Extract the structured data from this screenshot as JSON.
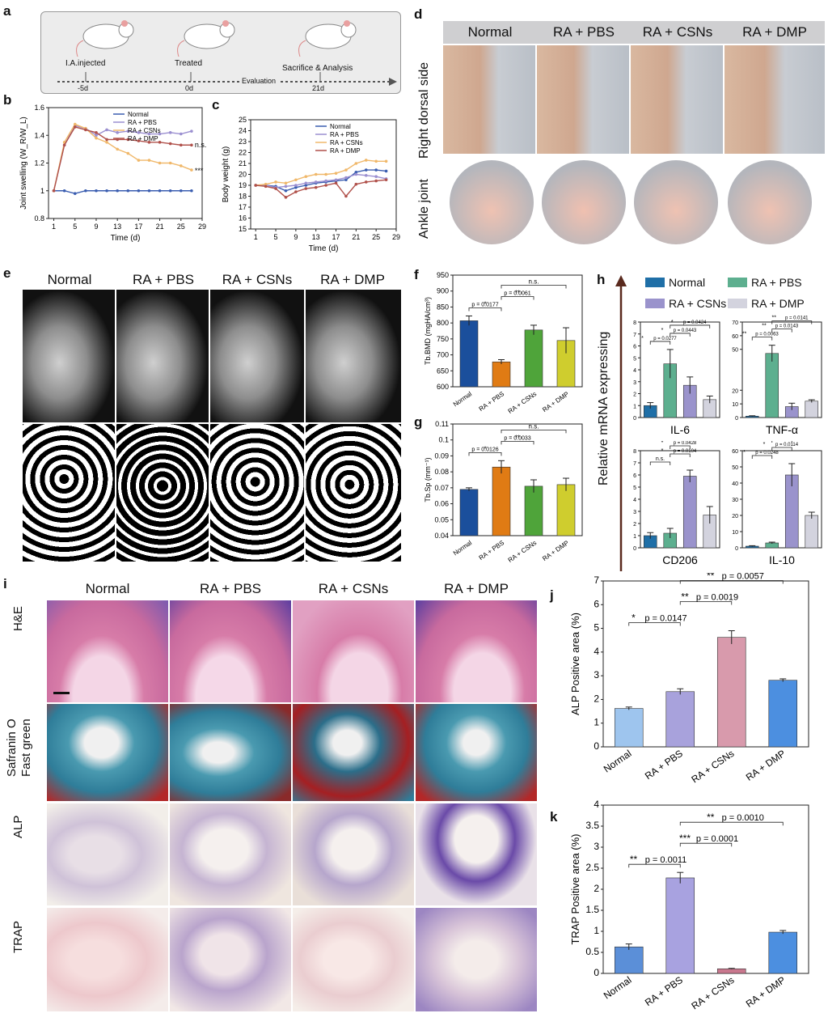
{
  "panels": {
    "a": {
      "label": "a",
      "steps": [
        "I.A.injected",
        "Treated",
        "Sacrifice & Analysis"
      ],
      "days": [
        "-5d",
        "0d",
        "21d"
      ],
      "timeline_label": "Evaluation"
    },
    "b": {
      "label": "b"
    },
    "c": {
      "label": "c"
    },
    "d": {
      "label": "d",
      "columns": [
        "Normal",
        "RA + PBS",
        "RA + CSNs",
        "RA + DMP"
      ],
      "rows": [
        "Right dorsal side",
        "Ankle joint"
      ]
    },
    "e": {
      "label": "e",
      "columns": [
        "Normal",
        "RA + PBS",
        "RA + CSNs",
        "RA + DMP"
      ]
    },
    "f": {
      "label": "f"
    },
    "g": {
      "label": "g"
    },
    "h": {
      "label": "h",
      "ylabel": "Relative mRNA expressing",
      "legend": [
        "Normal",
        "RA + PBS",
        "RA + CSNs",
        "RA + DMP"
      ]
    },
    "i": {
      "label": "i",
      "columns": [
        "Normal",
        "RA + PBS",
        "RA + CSNs",
        "RA + DMP"
      ],
      "rows": [
        "H&E",
        "Safranin O Fast green",
        "ALP",
        "TRAP"
      ],
      "row_lines": [
        [
          "H&E"
        ],
        [
          "Safranin O",
          "Fast green"
        ],
        [
          "ALP"
        ],
        [
          "TRAP"
        ]
      ]
    },
    "j": {
      "label": "j"
    },
    "k": {
      "label": "k"
    }
  },
  "colors": {
    "normal": "#1b4f9c",
    "pbs": "#e07b14",
    "csns": "#4fa43a",
    "dmp": "#cfcd2e",
    "h_normal": "#1f6fa7",
    "h_pbs": "#5daf8f",
    "h_csns": "#9a93cc",
    "h_dmp": "#d3d3de",
    "j_normal": "#9ec5ee",
    "j_pbs": "#a8a2dc",
    "j_csns": "#d89aac",
    "j_dmp": "#4c8fe0",
    "k_normal": "#5b8fd8",
    "k_pbs": "#a8a2e0",
    "k_csns": "#c9788e",
    "k_dmp": "#4c8fe0"
  },
  "chart_data": [
    {
      "id": "b",
      "type": "line",
      "xlabel": "Time (d)",
      "ylabel": "Joint swelling (W_R/W_L)",
      "ylim": [
        0.8,
        1.6
      ],
      "xlim": [
        0,
        29
      ],
      "xticks": [
        1,
        5,
        9,
        13,
        17,
        21,
        25,
        29
      ],
      "yticks": [
        0.8,
        1.0,
        1.2,
        1.4,
        1.6
      ],
      "x": [
        1,
        3,
        5,
        7,
        9,
        11,
        13,
        15,
        17,
        19,
        21,
        23,
        25,
        27
      ],
      "series": [
        {
          "name": "Normal",
          "color": "#3a5db0",
          "values": [
            1.0,
            1.0,
            0.98,
            1.0,
            1.0,
            1.0,
            1.0,
            1.0,
            1.0,
            1.0,
            1.0,
            1.0,
            1.0,
            1.0
          ]
        },
        {
          "name": "RA + PBS",
          "color": "#9b8fd0",
          "values": [
            1.0,
            1.33,
            1.47,
            1.45,
            1.4,
            1.44,
            1.42,
            1.43,
            1.42,
            1.41,
            1.41,
            1.42,
            1.41,
            1.43
          ]
        },
        {
          "name": "RA + CSNs",
          "color": "#f0b86a",
          "values": [
            1.0,
            1.35,
            1.48,
            1.45,
            1.38,
            1.35,
            1.3,
            1.27,
            1.22,
            1.22,
            1.2,
            1.2,
            1.18,
            1.15
          ]
        },
        {
          "name": "RA + DMP",
          "color": "#b0504a",
          "values": [
            1.0,
            1.33,
            1.46,
            1.44,
            1.42,
            1.37,
            1.37,
            1.37,
            1.36,
            1.35,
            1.35,
            1.34,
            1.33,
            1.33
          ]
        }
      ],
      "annotations": [
        "n.s.",
        "***"
      ]
    },
    {
      "id": "c",
      "type": "line",
      "xlabel": "Time (d)",
      "ylabel": "Body weight (g)",
      "ylim": [
        15,
        25
      ],
      "xticks": [
        1,
        5,
        9,
        13,
        17,
        21,
        25,
        29
      ],
      "yticks": [
        15,
        16,
        17,
        18,
        19,
        20,
        21,
        22,
        23,
        24,
        25
      ],
      "x": [
        1,
        3,
        5,
        7,
        9,
        11,
        13,
        15,
        17,
        19,
        21,
        23,
        25,
        27
      ],
      "series": [
        {
          "name": "Normal",
          "color": "#3a5db0",
          "values": [
            19.0,
            19.0,
            18.9,
            18.5,
            18.8,
            19.0,
            19.2,
            19.3,
            19.4,
            19.5,
            20.2,
            20.4,
            20.4,
            20.3
          ]
        },
        {
          "name": "RA + PBS",
          "color": "#9b8fd0",
          "values": [
            19.0,
            19.0,
            18.8,
            18.9,
            19.0,
            19.2,
            19.3,
            19.4,
            19.5,
            19.7,
            20.0,
            19.9,
            19.8,
            19.6
          ]
        },
        {
          "name": "RA + CSNs",
          "color": "#f0b86a",
          "values": [
            19.0,
            19.1,
            19.3,
            19.2,
            19.5,
            19.8,
            20.0,
            20.0,
            20.1,
            20.4,
            21.0,
            21.3,
            21.2,
            21.2
          ]
        },
        {
          "name": "RA + DMP",
          "color": "#b0504a",
          "values": [
            19.0,
            18.9,
            18.7,
            17.9,
            18.4,
            18.7,
            18.8,
            19.0,
            19.2,
            18.0,
            19.1,
            19.3,
            19.4,
            19.5
          ]
        }
      ]
    },
    {
      "id": "f",
      "type": "bar",
      "ylabel": "Tb.BMD (mgHA/cm³)",
      "ylim": [
        600,
        950
      ],
      "yticks": [
        600,
        650,
        700,
        750,
        800,
        850,
        900,
        950
      ],
      "categories": [
        "Normal",
        "RA + PBS",
        "RA + CSNs",
        "RA + DMP"
      ],
      "values": [
        807,
        678,
        778,
        745
      ],
      "errors": [
        15,
        7,
        15,
        40
      ],
      "comparisons": [
        {
          "from": 0,
          "to": 1,
          "text": "p = 0.0177",
          "stars": "*"
        },
        {
          "from": 1,
          "to": 2,
          "text": "p = 0.0061",
          "stars": "**"
        },
        {
          "from": 1,
          "to": 3,
          "text": "",
          "stars": "n.s."
        }
      ]
    },
    {
      "id": "g",
      "type": "bar",
      "ylabel": "Tb.Sp (mm⁻¹)",
      "ylim": [
        0.04,
        0.11
      ],
      "yticks": [
        0.04,
        0.05,
        0.06,
        0.07,
        0.08,
        0.09,
        0.1,
        0.11
      ],
      "categories": [
        "Normal",
        "RA + PBS",
        "RA + CSNs",
        "RA + DMP"
      ],
      "values": [
        0.069,
        0.083,
        0.071,
        0.072
      ],
      "errors": [
        0.001,
        0.004,
        0.004,
        0.004
      ],
      "comparisons": [
        {
          "from": 0,
          "to": 1,
          "text": "p = 0.0126",
          "stars": "*"
        },
        {
          "from": 1,
          "to": 2,
          "text": "p = 0.0033",
          "stars": "**"
        },
        {
          "from": 1,
          "to": 3,
          "text": "",
          "stars": "n.s."
        }
      ]
    },
    {
      "id": "h-il6",
      "type": "bar",
      "title": "IL-6",
      "ylim": [
        0,
        8
      ],
      "yticks": [
        0,
        1,
        2,
        3,
        4,
        5,
        6,
        7,
        8
      ],
      "categories": [
        "Normal",
        "RA + PBS",
        "RA + CSNs",
        "RA + DMP"
      ],
      "values": [
        1.0,
        4.5,
        2.7,
        1.5
      ],
      "errors": [
        0.25,
        1.2,
        0.7,
        0.3
      ],
      "comparisons": [
        {
          "from": 0,
          "to": 1,
          "text": "p = 0.0277",
          "stars": "*"
        },
        {
          "from": 1,
          "to": 2,
          "text": "p = 0.0443",
          "stars": "*"
        },
        {
          "from": 1,
          "to": 3,
          "text": "p = 0.0424",
          "stars": "*"
        }
      ]
    },
    {
      "id": "h-tnf",
      "type": "bar",
      "title": "TNF-α",
      "ylim": [
        0,
        70
      ],
      "yticks": [
        0,
        10,
        20,
        50,
        60,
        70
      ],
      "categories": [
        "Normal",
        "RA + PBS",
        "RA + CSNs",
        "RA + DMP"
      ],
      "values": [
        1,
        47,
        8,
        12
      ],
      "errors": [
        0.3,
        6,
        2.5,
        1
      ],
      "comparisons": [
        {
          "from": 0,
          "to": 1,
          "text": "p = 0.0063",
          "stars": "**"
        },
        {
          "from": 1,
          "to": 2,
          "text": "p = 0.0143",
          "stars": "**"
        },
        {
          "from": 1,
          "to": 3,
          "text": "p = 0.0141",
          "stars": "**"
        }
      ]
    },
    {
      "id": "h-cd206",
      "type": "bar",
      "title": "CD206",
      "ylim": [
        0,
        8
      ],
      "yticks": [
        0,
        1,
        2,
        3,
        4,
        5,
        6,
        7,
        8
      ],
      "categories": [
        "Normal",
        "RA + PBS",
        "RA + CSNs",
        "RA + DMP"
      ],
      "values": [
        1.0,
        1.2,
        5.9,
        2.7
      ],
      "errors": [
        0.25,
        0.4,
        0.5,
        0.7
      ],
      "comparisons": [
        {
          "from": 0,
          "to": 1,
          "text": "",
          "stars": "n.s."
        },
        {
          "from": 1,
          "to": 2,
          "text": "p = 0.0104",
          "stars": "*"
        },
        {
          "from": 1,
          "to": 2,
          "text": "p = 0.0428",
          "stars": "*"
        }
      ]
    },
    {
      "id": "h-il10",
      "type": "bar",
      "title": "IL-10",
      "ylim": [
        0,
        60
      ],
      "yticks": [
        0,
        10,
        20,
        30,
        40,
        50,
        60
      ],
      "categories": [
        "Normal",
        "RA + PBS",
        "RA + CSNs",
        "RA + DMP"
      ],
      "values": [
        1,
        3,
        45,
        20
      ],
      "errors": [
        0.3,
        0.5,
        7,
        2
      ],
      "comparisons": [
        {
          "from": 0,
          "to": 1,
          "text": "p = 0.0248",
          "stars": "*"
        },
        {
          "from": 1,
          "to": 2,
          "text": "p = 0.0114",
          "stars": "*"
        },
        {
          "from": 1,
          "to": 2,
          "text": "p = 0.0039",
          "stars": "**"
        }
      ]
    },
    {
      "id": "j",
      "type": "bar",
      "ylabel": "ALP Positive area (%)",
      "ylim": [
        0,
        7
      ],
      "yticks": [
        0,
        1,
        2,
        3,
        4,
        5,
        6,
        7
      ],
      "categories": [
        "Normal",
        "RA + PBS",
        "RA + CSNs",
        "RA + DMP"
      ],
      "values": [
        1.62,
        2.33,
        4.62,
        2.81
      ],
      "errors": [
        0.06,
        0.12,
        0.28,
        0.06
      ],
      "comparisons": [
        {
          "from": 0,
          "to": 1,
          "text": "p = 0.0147",
          "stars": "*"
        },
        {
          "from": 1,
          "to": 2,
          "text": "p = 0.0019",
          "stars": "**"
        },
        {
          "from": 1,
          "to": 3,
          "text": "p = 0.0057",
          "stars": "**"
        }
      ]
    },
    {
      "id": "k",
      "type": "bar",
      "ylabel": "TRAP Positive area (%)",
      "ylim": [
        0,
        4
      ],
      "yticks": [
        0.0,
        0.5,
        1.0,
        1.5,
        2.0,
        2.5,
        3.0,
        3.5,
        4.0
      ],
      "categories": [
        "Normal",
        "RA + PBS",
        "RA + CSNs",
        "RA + DMP"
      ],
      "values": [
        0.63,
        2.27,
        0.11,
        0.98
      ],
      "errors": [
        0.07,
        0.13,
        0.01,
        0.04
      ],
      "comparisons": [
        {
          "from": 0,
          "to": 1,
          "text": "p = 0.0011",
          "stars": "**"
        },
        {
          "from": 1,
          "to": 2,
          "text": "p = 0.0001",
          "stars": "***"
        },
        {
          "from": 1,
          "to": 3,
          "text": "p = 0.0010",
          "stars": "**"
        }
      ]
    }
  ]
}
